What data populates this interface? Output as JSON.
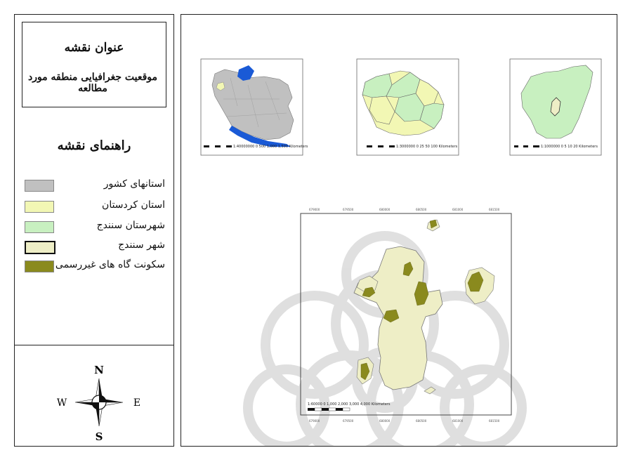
{
  "title_box": {
    "heading": "عنوان نقشه",
    "subtitle": "موقعیت جغرافیایی منطقه مورد مطالعه"
  },
  "legend": {
    "heading": "راهنمای نقشه",
    "items": [
      {
        "label": "استانهای کشور",
        "color": "#c0c0c0"
      },
      {
        "label": "استان کردستان",
        "color": "#f2f7b4"
      },
      {
        "label": "شهرستان سنندج",
        "color": "#c8f0c0"
      },
      {
        "label": "شهر سنندج",
        "color": "#eeeec6"
      },
      {
        "label": "سکونت گاه های غیررسمی",
        "color": "#8a8a1e"
      }
    ]
  },
  "compass": {
    "n": "N",
    "s": "S",
    "e": "E",
    "w": "W"
  },
  "colors": {
    "provinces": "#c0c0c0",
    "kurdistan": "#f2f7b4",
    "sanandaj_county": "#c8f0c0",
    "sanandaj_city": "#eeeec6",
    "informal": "#8a8a1e",
    "water": "#1a5ad6",
    "watermark": "#d8d8d8"
  },
  "maps": {
    "main_scale_label": "1:60000 0    1,000 2,000    3,000 4,000 Kilometers",
    "inset_iran_scale": "1:40000000  0  500 1,000  1,500 Kilometers",
    "inset_kurdistan_scale": "1:3000000  0  25  50  100 Kilometers",
    "inset_county_scale": "1:1000000  0  5  10  20 Kilometers"
  }
}
